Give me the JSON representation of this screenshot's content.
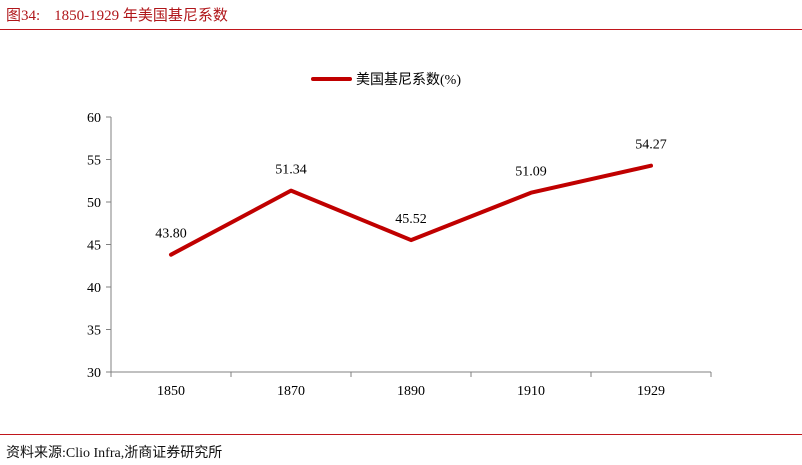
{
  "header": {
    "figure_number": "图34:",
    "title": "1850-1929 年美国基尼系数"
  },
  "footer": {
    "source": "资料来源:Clio Infra,浙商证券研究所"
  },
  "colors": {
    "accent": "#c00000",
    "rule": "#c0161c",
    "axis": "#808080",
    "text": "#000000"
  },
  "chart_data": {
    "type": "line",
    "categories": [
      "1850",
      "1870",
      "1890",
      "1910",
      "1929"
    ],
    "series": [
      {
        "name": "美国基尼系数(%)",
        "values": [
          43.8,
          51.34,
          45.52,
          51.09,
          54.27
        ]
      }
    ],
    "data_labels": [
      "43.80",
      "51.34",
      "45.52",
      "51.09",
      "54.27"
    ],
    "yticks": [
      30,
      35,
      40,
      45,
      50,
      55,
      60
    ],
    "ylim": [
      30,
      60
    ],
    "legend_position": "top-center",
    "grid": false
  }
}
